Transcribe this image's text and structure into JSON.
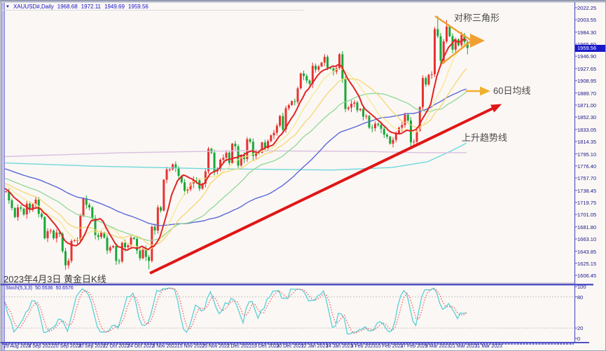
{
  "window": {
    "title_marker": "▼"
  },
  "header": {
    "symbol": "XAUUSD#,Daily",
    "open": "1968.68",
    "high": "1972.11",
    "low": "1949.69",
    "close": "1959.56"
  },
  "annotations": {
    "triangle_label": "对称三角形",
    "ma60_label": "60日均线",
    "trendline_label": "上升趋势线",
    "date_note": "2023年4月3日 黄金日K线"
  },
  "price_axis": {
    "labels": [
      "2022.25",
      "2003.55",
      "1984.30",
      "1965.60",
      "1946.90",
      "1927.65",
      "1908.95",
      "1889.70",
      "1871.00",
      "1852.30",
      "1833.05",
      "1814.35",
      "1795.10",
      "1776.40",
      "1757.70",
      "1738.45",
      "1719.75",
      "1701.05",
      "1681.80",
      "1663.10",
      "1643.85",
      "1625.15",
      "1606.45"
    ],
    "current": "1959.56"
  },
  "date_axis": {
    "labels": [
      "29 Aug 2022",
      "8 Sep 2022",
      "20 Sep 2022",
      "30 Sep 2022",
      "12 Oct 2022",
      "24 Oct 2022",
      "3 Nov 2022",
      "15 Nov 2022",
      "25 Nov 2022",
      "7 Dec 2022",
      "19 Dec 2022",
      "30 Dec 2022",
      "12 Jan 2023",
      "24 Jan 2023",
      "3 Feb 2023",
      "15 Feb 2023",
      "27 Feb 2023",
      "9 Mar 2023",
      "21 Mar 2023",
      "31 Mar 2023"
    ]
  },
  "stoch_panel": {
    "indicator": "Stoch(5,3,3)",
    "k_value": "50.5536",
    "d_value": "50.6576",
    "scale_labels": [
      "100",
      "80",
      "20",
      "0"
    ],
    "levels": [
      80,
      20
    ]
  },
  "chart_data": {
    "type": "candlestick",
    "symbol": "XAUUSD# Daily",
    "dates_span": "29 Aug 2022 - 3 Apr 2023",
    "y_range": [
      1606.45,
      2022.25
    ],
    "up_color": "#e83232",
    "down_color": "#18a838",
    "closes": [
      1737,
      1723,
      1711,
      1697,
      1712,
      1710,
      1701,
      1718,
      1708,
      1717,
      1724,
      1702,
      1697,
      1664,
      1675,
      1676,
      1664,
      1673,
      1671,
      1644,
      1622,
      1629,
      1660,
      1661,
      1661,
      1699,
      1726,
      1716,
      1712,
      1695,
      1669,
      1666,
      1673,
      1665,
      1645,
      1650,
      1652,
      1629,
      1628,
      1657,
      1650,
      1653,
      1665,
      1663,
      1645,
      1633,
      1648,
      1635,
      1629,
      1682,
      1676,
      1712,
      1707,
      1755,
      1771,
      1771,
      1779,
      1773,
      1761,
      1751,
      1738,
      1740,
      1749,
      1755,
      1754,
      1741,
      1749,
      1768,
      1803,
      1797,
      1768,
      1771,
      1786,
      1789,
      1797,
      1781,
      1811,
      1807,
      1777,
      1793,
      1787,
      1818,
      1814,
      1792,
      1798,
      1797,
      1813,
      1804,
      1815,
      1824,
      1828,
      1839,
      1854,
      1833,
      1866,
      1871,
      1877,
      1876,
      1897,
      1920,
      1916,
      1909,
      1904,
      1932,
      1926,
      1931,
      1937,
      1946,
      1929,
      1928,
      1923,
      1928,
      1950,
      1912,
      1865,
      1867,
      1873,
      1875,
      1863,
      1865,
      1853,
      1854,
      1836,
      1835,
      1842,
      1840,
      1834,
      1825,
      1822,
      1811,
      1817,
      1827,
      1836,
      1840,
      1856,
      1847,
      1813,
      1814,
      1831,
      1868,
      1913,
      1903,
      1918,
      1919,
      1989,
      1978,
      1940,
      1970,
      1993,
      1978,
      1957,
      1973,
      1964,
      1980,
      1969,
      1959.56
    ],
    "last_candle": {
      "open": 1968.68,
      "high": 1972.11,
      "low": 1949.69,
      "close": 1959.56
    },
    "wick_overrides": {
      "48": {
        "low": 1616
      },
      "145": {
        "high": 2009
      },
      "148": {
        "high": 2003
      }
    },
    "history_seed": {
      "start": 1806,
      "end": 1740,
      "count": 60
    },
    "moving_averages": [
      {
        "name": "ma8-red",
        "period": 8,
        "color": "#e02424",
        "width": 2
      },
      {
        "name": "ma13-light-yellow",
        "period": 13,
        "color": "#f7e88e",
        "width": 1.2
      },
      {
        "name": "ma21-yellow",
        "period": 21,
        "color": "#f4d469",
        "width": 1.2
      },
      {
        "name": "ma34-green",
        "period": 34,
        "color": "#8ed898",
        "width": 1.3
      },
      {
        "name": "ma60-blue",
        "period": 60,
        "color": "#5b6ad8",
        "width": 1.4
      }
    ],
    "long_ma_anchors": [
      {
        "name": "ma120-cyan",
        "color": "#6fd8dc",
        "width": 1.4,
        "points": [
          [
            0,
            1781
          ],
          [
            30,
            1776
          ],
          [
            70,
            1772
          ],
          [
            110,
            1770
          ],
          [
            130,
            1774
          ],
          [
            142,
            1783
          ],
          [
            150,
            1800
          ],
          [
            155,
            1812
          ]
        ]
      },
      {
        "name": "ma250-lavender",
        "color": "#d9bfe0",
        "width": 1.4,
        "points": [
          [
            0,
            1791
          ],
          [
            40,
            1797
          ],
          [
            80,
            1800
          ],
          [
            120,
            1799
          ],
          [
            140,
            1797
          ],
          [
            155,
            1797
          ]
        ]
      }
    ],
    "trend_line": {
      "from": [
        213,
        389
      ],
      "to": [
        708,
        151
      ],
      "color": "#e01616",
      "width": 4
    },
    "triangle": {
      "color": "#f0a030",
      "width": 2.4,
      "upper_from": [
        620,
        22
      ],
      "lower_from": [
        630,
        90
      ],
      "apex": [
        672,
        57
      ],
      "arrow_tip": [
        691,
        57
      ]
    },
    "ma60_arrow": {
      "from": [
        664,
        129
      ],
      "to": [
        684,
        129
      ],
      "tip": [
        699,
        129
      ],
      "color": "#f0b030"
    },
    "stoch": {
      "k_period": 5,
      "k_smooth": 3,
      "d_period": 3,
      "k_color": "#58d0d8",
      "d_color": "#f06868",
      "range": [
        0,
        100
      ]
    }
  }
}
